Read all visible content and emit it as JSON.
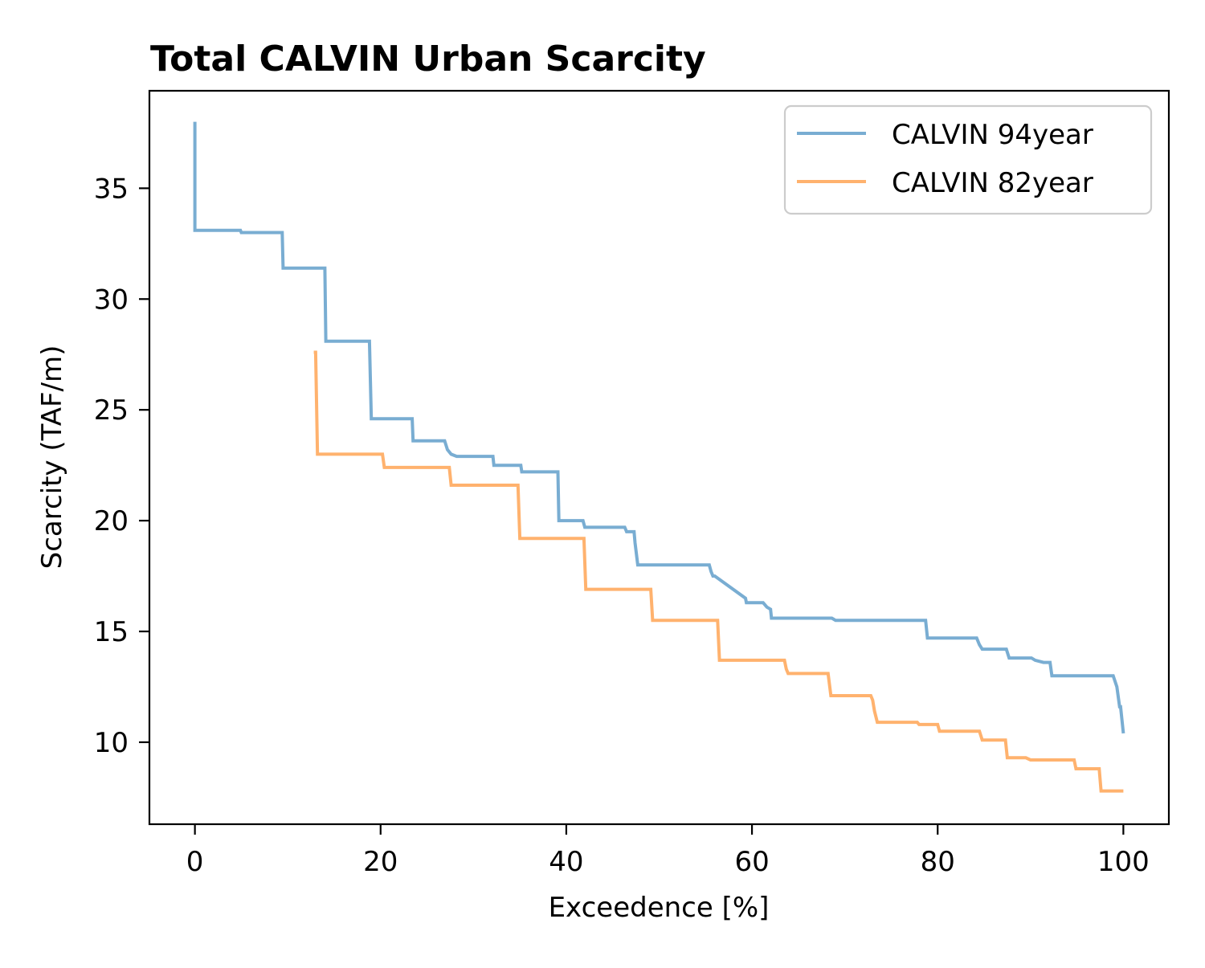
{
  "chart_data": {
    "type": "line",
    "title": "Total CALVIN Urban Scarcity",
    "xlabel": "Exceedence [%]",
    "ylabel": "Scarcity (TAF/m)",
    "xlim": [
      -4.9,
      104.9
    ],
    "ylim": [
      6.3,
      39.4
    ],
    "xticks": [
      0,
      20,
      40,
      60,
      80,
      100
    ],
    "yticks": [
      10,
      15,
      20,
      25,
      30,
      35
    ],
    "grid": false,
    "legend_position": "top-right",
    "series": [
      {
        "name": "CALVIN 94year",
        "color": "#1f77b4",
        "opacity": 0.6,
        "x": [
          0,
          0,
          0,
          0.1,
          4.9,
          5,
          9.4,
          9.5,
          14,
          14.1,
          18.8,
          19,
          23.4,
          23.5,
          26.9,
          27.2,
          27.6,
          28.2,
          32.1,
          32.2,
          35.1,
          35.2,
          39.1,
          39.2,
          41.8,
          42,
          46.3,
          46.5,
          47.3,
          47.4,
          47.7,
          55.4,
          55.6,
          55.8,
          56,
          59.3,
          59.4,
          59.6,
          61.2,
          61.6,
          62,
          62.1,
          68.6,
          69,
          74,
          77.1,
          78.7,
          78.9,
          84.2,
          84.5,
          84.8,
          87.4,
          87.7,
          90.1,
          90.5,
          91.4,
          92.1,
          92.3,
          98.9,
          99.3,
          99.6,
          99.7,
          100
        ],
        "y": [
          38,
          36,
          33.1,
          33.1,
          33.1,
          33,
          33,
          31.4,
          31.4,
          28.1,
          28.1,
          24.6,
          24.6,
          23.6,
          23.6,
          23.2,
          23,
          22.9,
          22.9,
          22.5,
          22.5,
          22.2,
          22.2,
          20,
          20,
          19.7,
          19.7,
          19.5,
          19.5,
          19,
          18,
          18,
          17.7,
          17.5,
          17.5,
          16.5,
          16.3,
          16.3,
          16.3,
          16.1,
          16,
          15.6,
          15.6,
          15.5,
          15.5,
          15.5,
          15.5,
          14.7,
          14.7,
          14.4,
          14.2,
          14.2,
          13.8,
          13.8,
          13.7,
          13.6,
          13.6,
          13,
          13,
          12.5,
          11.6,
          11.6,
          10.4
        ]
      },
      {
        "name": "CALVIN 82year",
        "color": "#ff7f0e",
        "opacity": 0.6,
        "x": [
          12.8,
          13,
          13.2,
          20.2,
          20.4,
          27.4,
          27.6,
          34.8,
          35,
          41.9,
          42.1,
          49.1,
          49.3,
          56.3,
          56.5,
          63.5,
          63.7,
          63.9,
          68.2,
          68.5,
          72.8,
          73,
          73.2,
          73.5,
          77.8,
          78,
          80,
          80.2,
          84.5,
          84.8,
          87.3,
          87.5,
          89.5,
          90,
          94.7,
          94.9,
          97.4,
          97.6,
          100
        ],
        "y": [
          27.6,
          27.6,
          23,
          23,
          22.4,
          22.4,
          21.6,
          21.6,
          19.2,
          19.2,
          16.9,
          16.9,
          15.5,
          15.5,
          13.7,
          13.7,
          13.3,
          13.1,
          13.1,
          12.1,
          12.1,
          11.9,
          11.4,
          10.9,
          10.9,
          10.8,
          10.8,
          10.5,
          10.5,
          10.1,
          10.1,
          9.3,
          9.3,
          9.2,
          9.2,
          8.8,
          8.8,
          7.8,
          7.8
        ]
      }
    ]
  }
}
